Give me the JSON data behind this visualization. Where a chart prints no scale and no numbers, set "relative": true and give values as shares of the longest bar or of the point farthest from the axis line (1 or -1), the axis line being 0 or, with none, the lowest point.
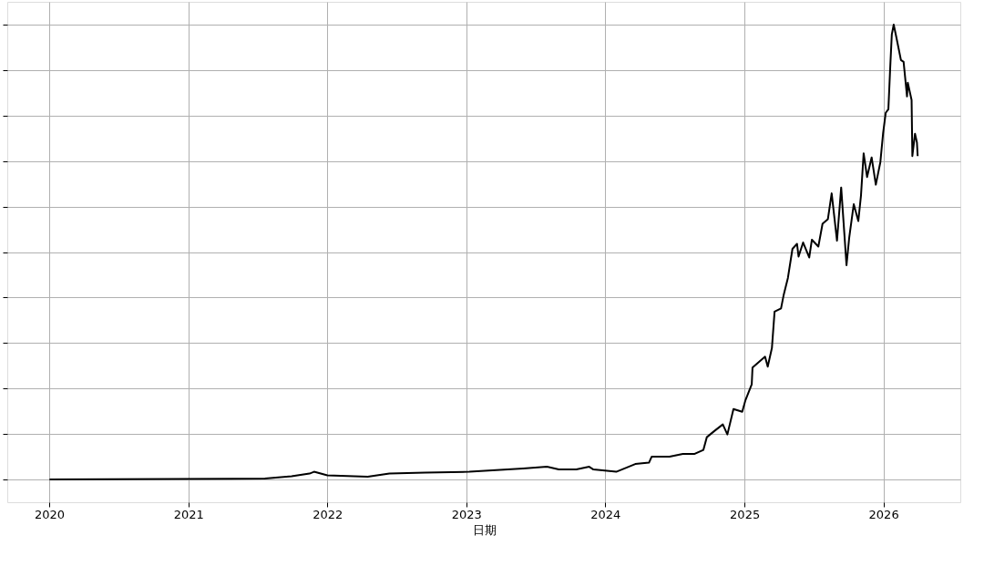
{
  "chart_data": {
    "type": "line",
    "xlabel": "日期",
    "relative": true,
    "grid": true,
    "marker": "none",
    "line_style": "solid",
    "xlim": [
      "2019-09-13",
      "2026-07-22"
    ],
    "xticks": [
      "2020",
      "2021",
      "2022",
      "2023",
      "2024",
      "2025",
      "2026"
    ],
    "series": [
      {
        "color": "#000000",
        "x": [
          "2020-01-02",
          "2021-07-21",
          "2021-09-29",
          "2021-11-15",
          "2021-11-27",
          "2022-01-01",
          "2022-04-17",
          "2022-06-13",
          "2022-09-15",
          "2023-01-09",
          "2023-05-30",
          "2023-08-01",
          "2023-09-01",
          "2023-10-17",
          "2023-11-20",
          "2023-12-01",
          "2024-01-30",
          "2024-03-20",
          "2024-04-25",
          "2024-05-02",
          "2024-06-18",
          "2024-07-23",
          "2024-08-22",
          "2024-09-15",
          "2024-09-24",
          "2024-10-13",
          "2024-11-05",
          "2024-11-17",
          "2024-12-03",
          "2024-12-26",
          "2025-01-03",
          "2025-01-20",
          "2025-01-22",
          "2025-02-24",
          "2025-03-03",
          "2025-03-14",
          "2025-03-21",
          "2025-04-07",
          "2025-04-14",
          "2025-04-25",
          "2025-05-07",
          "2025-05-19",
          "2025-05-23",
          "2025-06-04",
          "2025-06-20",
          "2025-06-27",
          "2025-07-14",
          "2025-07-25",
          "2025-08-08",
          "2025-08-18",
          "2025-09-01",
          "2025-09-12",
          "2025-09-26",
          "2025-10-03",
          "2025-10-15",
          "2025-10-27",
          "2025-11-03",
          "2025-11-10",
          "2025-11-19",
          "2025-12-01",
          "2025-12-12",
          "2025-12-24",
          "2025-12-31",
          "2026-01-07",
          "2026-01-14",
          "2026-01-19",
          "2026-01-23",
          "2026-01-28",
          "2026-02-04",
          "2026-02-16",
          "2026-02-23",
          "2026-03-04",
          "2026-03-06",
          "2026-03-16",
          "2026-03-18",
          "2026-03-25",
          "2026-03-30",
          "2026-04-01"
        ],
        "values": [
          0,
          0.002,
          0.007,
          0.013,
          0.017,
          0.009,
          0.006,
          0.013,
          0.015,
          0.017,
          0.024,
          0.028,
          0.022,
          0.022,
          0.028,
          0.022,
          0.017,
          0.034,
          0.037,
          0.05,
          0.05,
          0.056,
          0.056,
          0.065,
          0.093,
          0.106,
          0.121,
          0.099,
          0.155,
          0.149,
          0.173,
          0.209,
          0.246,
          0.27,
          0.248,
          0.289,
          0.369,
          0.376,
          0.406,
          0.443,
          0.507,
          0.518,
          0.49,
          0.521,
          0.488,
          0.527,
          0.512,
          0.562,
          0.572,
          0.629,
          0.525,
          0.642,
          0.471,
          0.531,
          0.605,
          0.568,
          0.624,
          0.717,
          0.665,
          0.708,
          0.648,
          0.698,
          0.76,
          0.806,
          0.814,
          0.909,
          0.978,
          1,
          0.972,
          0.922,
          0.918,
          0.842,
          0.872,
          0.834,
          0.711,
          0.76,
          0.741,
          0.711
        ]
      }
    ]
  }
}
